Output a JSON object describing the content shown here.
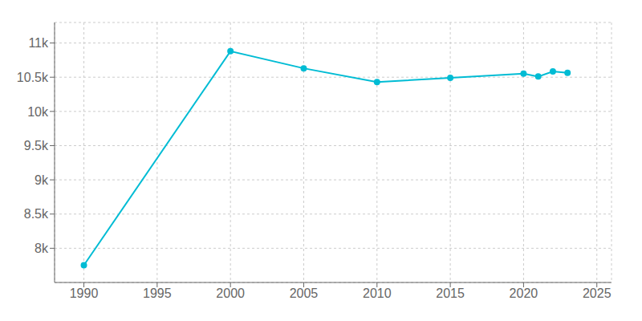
{
  "chart_data": {
    "type": "line",
    "x": [
      1990,
      2000,
      2005,
      2010,
      2015,
      2020,
      2021,
      2022,
      2023
    ],
    "values": [
      7752,
      10880,
      10630,
      10430,
      10490,
      10553,
      10510,
      10585,
      10565
    ],
    "color": "#00bcd4",
    "marker": "circle",
    "xlim": [
      1988,
      2026
    ],
    "ylim": [
      7500,
      11300
    ],
    "xticks": [
      1990,
      1995,
      2000,
      2005,
      2010,
      2015,
      2020,
      2025
    ],
    "yticks": [
      {
        "value": 8000,
        "label": "8k"
      },
      {
        "value": 8500,
        "label": "8.5k"
      },
      {
        "value": 9000,
        "label": "9k"
      },
      {
        "value": 9500,
        "label": "9.5k"
      },
      {
        "value": 10000,
        "label": "10k"
      },
      {
        "value": 10500,
        "label": "10.5k"
      },
      {
        "value": 11000,
        "label": "11k"
      }
    ],
    "grid": true
  }
}
